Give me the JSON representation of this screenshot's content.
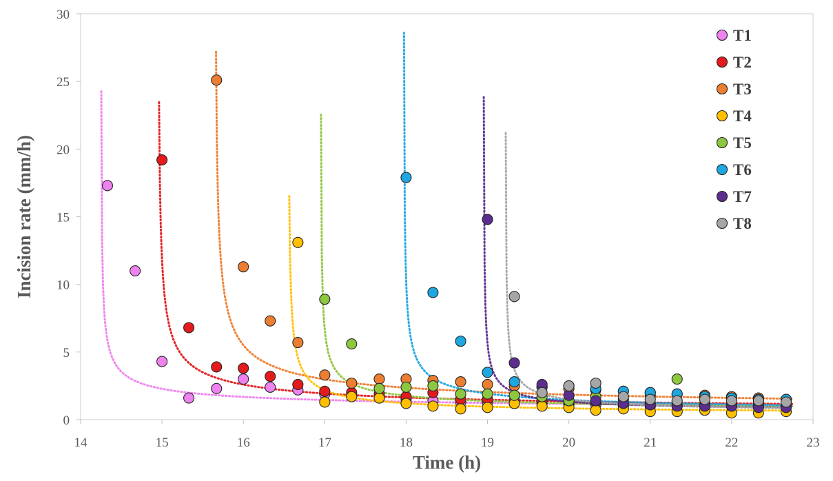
{
  "chart_data": {
    "type": "scatter",
    "xlabel": "Time (h)",
    "ylabel": "Incision rate (mm/h)",
    "xlim": [
      14,
      23
    ],
    "ylim": [
      0,
      30
    ],
    "x_ticks": [
      14,
      15,
      16,
      17,
      18,
      19,
      20,
      21,
      22,
      23
    ],
    "y_ticks": [
      0,
      5,
      10,
      15,
      20,
      25,
      30
    ],
    "grid": false,
    "legend_position": "top-right",
    "trendlines": "dotted power-law fit per series",
    "series": [
      {
        "name": "T1",
        "color": "#ee82ee",
        "trend": {
          "x0": 14.25,
          "a": 1.5,
          "b": 0.5,
          "c": 0.55
        },
        "points": [
          [
            14.33,
            17.3
          ],
          [
            14.67,
            11.0
          ],
          [
            15.0,
            4.3
          ],
          [
            15.33,
            1.6
          ],
          [
            15.67,
            2.3
          ],
          [
            16.0,
            3.0
          ],
          [
            16.33,
            2.4
          ],
          [
            16.67,
            2.2
          ],
          [
            17.0,
            1.9
          ],
          [
            17.33,
            1.8
          ],
          [
            17.67,
            1.6
          ],
          [
            18.0,
            1.5
          ],
          [
            18.33,
            1.4
          ],
          [
            18.67,
            1.3
          ],
          [
            19.0,
            1.3
          ],
          [
            19.33,
            1.2
          ],
          [
            19.67,
            1.2
          ],
          [
            20.0,
            1.1
          ],
          [
            20.33,
            1.1
          ],
          [
            20.67,
            1.0
          ],
          [
            21.0,
            1.0
          ],
          [
            21.33,
            1.0
          ],
          [
            21.67,
            1.0
          ],
          [
            22.0,
            1.0
          ],
          [
            22.33,
            1.0
          ],
          [
            22.67,
            1.0
          ]
        ]
      },
      {
        "name": "T2",
        "color": "#e41a1c",
        "trend": {
          "x0": 14.95,
          "a": 2.2,
          "b": 0.55,
          "c": 0.45
        },
        "points": [
          [
            15.0,
            19.2
          ],
          [
            15.33,
            6.8
          ],
          [
            15.67,
            3.9
          ],
          [
            16.0,
            3.8
          ],
          [
            16.33,
            3.2
          ],
          [
            16.67,
            2.6
          ],
          [
            17.0,
            2.1
          ],
          [
            17.33,
            2.0
          ],
          [
            17.67,
            1.9
          ],
          [
            18.0,
            1.7
          ],
          [
            18.33,
            2.0
          ],
          [
            18.67,
            1.5
          ],
          [
            19.0,
            1.5
          ],
          [
            19.33,
            1.4
          ],
          [
            19.67,
            1.4
          ],
          [
            20.0,
            1.3
          ],
          [
            20.33,
            1.3
          ],
          [
            20.67,
            1.2
          ],
          [
            21.0,
            1.2
          ],
          [
            21.33,
            1.1
          ],
          [
            21.67,
            1.1
          ],
          [
            22.0,
            1.1
          ],
          [
            22.33,
            1.0
          ],
          [
            22.67,
            1.0
          ]
        ]
      },
      {
        "name": "T3",
        "color": "#ed7d31",
        "trend": {
          "x0": 15.65,
          "a": 2.9,
          "b": 0.52,
          "c": 0.5
        },
        "points": [
          [
            15.67,
            25.1
          ],
          [
            16.0,
            11.3
          ],
          [
            16.33,
            7.3
          ],
          [
            16.67,
            5.7
          ],
          [
            17.0,
            3.3
          ],
          [
            17.33,
            2.7
          ],
          [
            17.67,
            3.0
          ],
          [
            18.0,
            3.0
          ],
          [
            18.33,
            2.9
          ],
          [
            18.67,
            2.8
          ],
          [
            19.0,
            2.6
          ],
          [
            19.33,
            2.5
          ],
          [
            19.67,
            2.4
          ],
          [
            20.0,
            2.3
          ],
          [
            20.33,
            2.2
          ],
          [
            20.67,
            2.1
          ],
          [
            21.0,
            2.0
          ],
          [
            21.33,
            1.9
          ],
          [
            21.67,
            1.8
          ],
          [
            22.0,
            1.7
          ],
          [
            22.33,
            1.6
          ],
          [
            22.67,
            1.5
          ]
        ]
      },
      {
        "name": "T4",
        "color": "#ffc000",
        "trend": {
          "x0": 16.55,
          "a": 1.15,
          "b": 0.62,
          "c": 0.3
        },
        "points": [
          [
            16.67,
            13.1
          ],
          [
            17.0,
            1.3
          ],
          [
            17.33,
            1.7
          ],
          [
            17.67,
            1.6
          ],
          [
            18.0,
            1.2
          ],
          [
            18.33,
            1.0
          ],
          [
            18.67,
            0.8
          ],
          [
            19.0,
            0.9
          ],
          [
            19.33,
            1.2
          ],
          [
            19.67,
            1.0
          ],
          [
            20.0,
            0.9
          ],
          [
            20.33,
            0.7
          ],
          [
            20.67,
            0.8
          ],
          [
            21.0,
            0.6
          ],
          [
            21.33,
            0.6
          ],
          [
            21.67,
            0.7
          ],
          [
            22.0,
            0.5
          ],
          [
            22.33,
            0.5
          ],
          [
            22.67,
            0.6
          ]
        ]
      },
      {
        "name": "T5",
        "color": "#8dc63f",
        "trend": {
          "x0": 16.95,
          "a": 1.4,
          "b": 0.5,
          "c": 0.4
        },
        "points": [
          [
            17.0,
            8.9
          ],
          [
            17.33,
            5.6
          ],
          [
            17.67,
            2.3
          ],
          [
            18.0,
            2.4
          ],
          [
            18.33,
            2.5
          ],
          [
            18.67,
            1.9
          ],
          [
            19.0,
            1.9
          ],
          [
            19.33,
            1.8
          ],
          [
            19.67,
            1.7
          ],
          [
            20.0,
            1.4
          ],
          [
            20.33,
            1.7
          ],
          [
            20.67,
            1.5
          ],
          [
            21.0,
            1.8
          ],
          [
            21.33,
            3.0
          ],
          [
            21.67,
            1.5
          ],
          [
            22.0,
            1.4
          ],
          [
            22.33,
            1.3
          ],
          [
            22.67,
            1.4
          ]
        ]
      },
      {
        "name": "T6",
        "color": "#1ea7e0",
        "trend": {
          "x0": 17.97,
          "a": 1.6,
          "b": 0.52,
          "c": 0.35
        },
        "points": [
          [
            18.0,
            17.9
          ],
          [
            18.33,
            9.4
          ],
          [
            18.67,
            5.8
          ],
          [
            19.0,
            3.5
          ],
          [
            19.33,
            2.8
          ],
          [
            19.67,
            2.4
          ],
          [
            20.0,
            2.5
          ],
          [
            20.33,
            2.3
          ],
          [
            20.67,
            2.1
          ],
          [
            21.0,
            2.0
          ],
          [
            21.33,
            1.9
          ],
          [
            21.67,
            1.7
          ],
          [
            22.0,
            1.6
          ],
          [
            22.33,
            1.5
          ],
          [
            22.67,
            1.5
          ]
        ]
      },
      {
        "name": "T7",
        "color": "#5b2d8e",
        "trend": {
          "x0": 18.95,
          "a": 0.85,
          "b": 0.6,
          "c": 0.5
        },
        "points": [
          [
            19.0,
            14.8
          ],
          [
            19.33,
            4.2
          ],
          [
            19.67,
            2.6
          ],
          [
            20.0,
            1.8
          ],
          [
            20.33,
            1.4
          ],
          [
            20.67,
            1.2
          ],
          [
            21.0,
            1.1
          ],
          [
            21.33,
            1.0
          ],
          [
            21.67,
            1.0
          ],
          [
            22.0,
            1.0
          ],
          [
            22.33,
            0.9
          ],
          [
            22.67,
            0.9
          ]
        ]
      },
      {
        "name": "T8",
        "color": "#a6a6a6",
        "trend": {
          "x0": 19.22,
          "a": 1.0,
          "b": 0.55,
          "c": 0.35
        },
        "points": [
          [
            19.33,
            9.1
          ],
          [
            19.67,
            2.0
          ],
          [
            20.0,
            2.5
          ],
          [
            20.33,
            2.7
          ],
          [
            20.67,
            1.7
          ],
          [
            21.0,
            1.5
          ],
          [
            21.33,
            1.4
          ],
          [
            21.67,
            1.5
          ],
          [
            22.0,
            1.4
          ],
          [
            22.33,
            1.4
          ],
          [
            22.67,
            1.3
          ]
        ]
      }
    ]
  }
}
